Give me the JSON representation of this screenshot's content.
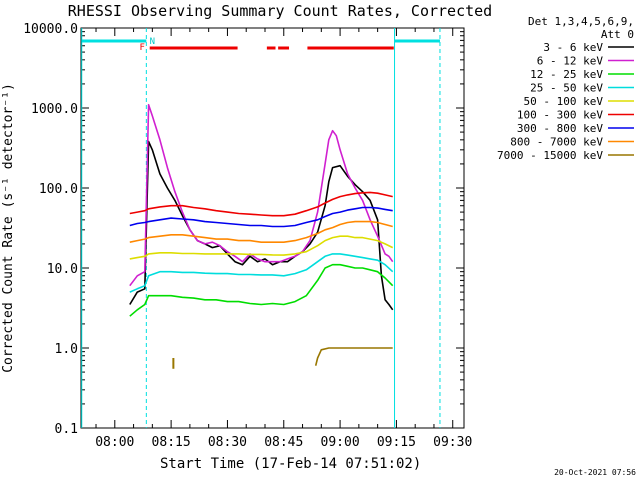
{
  "chart_data": {
    "type": "line",
    "title": "RHESSI Observing Summary Count Rates, Corrected",
    "xlabel": "Start Time (17-Feb-14 07:51:02)",
    "ylabel": "Corrected Count Rate (s⁻¹ detector⁻¹)",
    "yscale": "log",
    "ylim": [
      0.1,
      10000.0
    ],
    "xlim_minutes": [
      471,
      573
    ],
    "x_ticks": [
      {
        "label": "08:00",
        "min": 480
      },
      {
        "label": "08:15",
        "min": 495
      },
      {
        "label": "08:30",
        "min": 510
      },
      {
        "label": "08:45",
        "min": 525
      },
      {
        "label": "09:00",
        "min": 540
      },
      {
        "label": "09:15",
        "min": 555
      },
      {
        "label": "09:30",
        "min": 570
      }
    ],
    "y_ticks": [
      "0.1",
      "1.0",
      "10.0",
      "100.0",
      "1000.0",
      "10000.0"
    ],
    "legend_header": [
      "Det 1,3,4,5,6,9,",
      "Att 0"
    ],
    "legend_position": "right",
    "flags": {
      "f_label": "F",
      "n_label": "N"
    },
    "series": [
      {
        "name": "3 - 6 keV",
        "color": "#000000",
        "points": [
          [
            484,
            3.5
          ],
          [
            486,
            5
          ],
          [
            488,
            5.5
          ],
          [
            489,
            380
          ],
          [
            490,
            300
          ],
          [
            492,
            150
          ],
          [
            494,
            100
          ],
          [
            496,
            70
          ],
          [
            498,
            45
          ],
          [
            500,
            30
          ],
          [
            502,
            22
          ],
          [
            504,
            20
          ],
          [
            506,
            18
          ],
          [
            508,
            19
          ],
          [
            510,
            15
          ],
          [
            512,
            12
          ],
          [
            514,
            11
          ],
          [
            516,
            14
          ],
          [
            518,
            12
          ],
          [
            520,
            13
          ],
          [
            522,
            11
          ],
          [
            524,
            12
          ],
          [
            526,
            12
          ],
          [
            528,
            14
          ],
          [
            530,
            16
          ],
          [
            532,
            20
          ],
          [
            534,
            28
          ],
          [
            536,
            60
          ],
          [
            537,
            120
          ],
          [
            538,
            180
          ],
          [
            540,
            190
          ],
          [
            542,
            140
          ],
          [
            544,
            110
          ],
          [
            546,
            90
          ],
          [
            548,
            70
          ],
          [
            550,
            40
          ],
          [
            551,
            8
          ],
          [
            552,
            4
          ],
          [
            553,
            3.5
          ],
          [
            554,
            3
          ]
        ]
      },
      {
        "name": "6 - 12 keV",
        "color": "#d020d0",
        "points": [
          [
            484,
            6
          ],
          [
            486,
            8
          ],
          [
            488,
            9
          ],
          [
            489,
            1100
          ],
          [
            490,
            800
          ],
          [
            492,
            400
          ],
          [
            494,
            180
          ],
          [
            496,
            90
          ],
          [
            498,
            50
          ],
          [
            500,
            30
          ],
          [
            502,
            22
          ],
          [
            504,
            20
          ],
          [
            506,
            21
          ],
          [
            508,
            19
          ],
          [
            510,
            16
          ],
          [
            512,
            14
          ],
          [
            514,
            12
          ],
          [
            516,
            15
          ],
          [
            518,
            13
          ],
          [
            520,
            12
          ],
          [
            522,
            12
          ],
          [
            524,
            12
          ],
          [
            526,
            13
          ],
          [
            528,
            14
          ],
          [
            530,
            16
          ],
          [
            532,
            22
          ],
          [
            534,
            50
          ],
          [
            536,
            200
          ],
          [
            537,
            400
          ],
          [
            538,
            520
          ],
          [
            539,
            450
          ],
          [
            540,
            300
          ],
          [
            542,
            150
          ],
          [
            544,
            100
          ],
          [
            546,
            70
          ],
          [
            548,
            40
          ],
          [
            550,
            25
          ],
          [
            552,
            15
          ],
          [
            553,
            14
          ],
          [
            554,
            12
          ]
        ]
      },
      {
        "name": "12 - 25 keV",
        "color": "#00dd00",
        "points": [
          [
            484,
            2.5
          ],
          [
            486,
            3
          ],
          [
            488,
            3.5
          ],
          [
            489,
            4.5
          ],
          [
            492,
            4.5
          ],
          [
            495,
            4.5
          ],
          [
            498,
            4.3
          ],
          [
            501,
            4.2
          ],
          [
            504,
            4.0
          ],
          [
            507,
            4.0
          ],
          [
            510,
            3.8
          ],
          [
            513,
            3.8
          ],
          [
            516,
            3.6
          ],
          [
            519,
            3.5
          ],
          [
            522,
            3.6
          ],
          [
            525,
            3.5
          ],
          [
            528,
            3.8
          ],
          [
            531,
            4.5
          ],
          [
            534,
            7
          ],
          [
            536,
            10
          ],
          [
            538,
            11
          ],
          [
            540,
            11
          ],
          [
            542,
            10.5
          ],
          [
            544,
            10
          ],
          [
            546,
            10
          ],
          [
            548,
            9.5
          ],
          [
            550,
            9
          ],
          [
            552,
            7.5
          ],
          [
            554,
            6
          ]
        ]
      },
      {
        "name": "25 - 50 keV",
        "color": "#00dddd",
        "points": [
          [
            484,
            5
          ],
          [
            486,
            5.5
          ],
          [
            488,
            6
          ],
          [
            489,
            8
          ],
          [
            492,
            9
          ],
          [
            495,
            9
          ],
          [
            498,
            8.8
          ],
          [
            501,
            8.8
          ],
          [
            504,
            8.6
          ],
          [
            507,
            8.5
          ],
          [
            510,
            8.5
          ],
          [
            513,
            8.3
          ],
          [
            516,
            8.3
          ],
          [
            519,
            8.2
          ],
          [
            522,
            8.2
          ],
          [
            525,
            8.0
          ],
          [
            528,
            8.5
          ],
          [
            531,
            9.5
          ],
          [
            534,
            12
          ],
          [
            536,
            14
          ],
          [
            538,
            15
          ],
          [
            540,
            15
          ],
          [
            542,
            14.5
          ],
          [
            544,
            14
          ],
          [
            546,
            13.5
          ],
          [
            548,
            13
          ],
          [
            550,
            12.5
          ],
          [
            552,
            11
          ],
          [
            554,
            9
          ]
        ]
      },
      {
        "name": "50 - 100 keV",
        "color": "#dddd00",
        "points": [
          [
            484,
            13
          ],
          [
            486,
            13.5
          ],
          [
            488,
            14
          ],
          [
            489,
            15
          ],
          [
            492,
            15.5
          ],
          [
            495,
            15.5
          ],
          [
            498,
            15.2
          ],
          [
            501,
            15.2
          ],
          [
            504,
            15
          ],
          [
            507,
            15
          ],
          [
            510,
            15
          ],
          [
            513,
            15
          ],
          [
            516,
            14.8
          ],
          [
            519,
            14.8
          ],
          [
            522,
            14.6
          ],
          [
            525,
            14.5
          ],
          [
            528,
            15
          ],
          [
            531,
            16
          ],
          [
            534,
            19
          ],
          [
            536,
            22
          ],
          [
            538,
            24
          ],
          [
            540,
            25
          ],
          [
            542,
            25
          ],
          [
            544,
            24
          ],
          [
            546,
            24
          ],
          [
            548,
            23
          ],
          [
            550,
            22
          ],
          [
            552,
            20
          ],
          [
            554,
            18
          ]
        ]
      },
      {
        "name": "100 - 300 keV",
        "color": "#ee0000",
        "points": [
          [
            484,
            48
          ],
          [
            486,
            50
          ],
          [
            488,
            52
          ],
          [
            489,
            55
          ],
          [
            492,
            58
          ],
          [
            495,
            60
          ],
          [
            498,
            60
          ],
          [
            501,
            57
          ],
          [
            504,
            55
          ],
          [
            507,
            52
          ],
          [
            510,
            50
          ],
          [
            513,
            48
          ],
          [
            516,
            47
          ],
          [
            519,
            46
          ],
          [
            522,
            45
          ],
          [
            525,
            45
          ],
          [
            528,
            47
          ],
          [
            531,
            52
          ],
          [
            534,
            58
          ],
          [
            536,
            65
          ],
          [
            538,
            72
          ],
          [
            540,
            78
          ],
          [
            542,
            82
          ],
          [
            544,
            85
          ],
          [
            546,
            87
          ],
          [
            548,
            88
          ],
          [
            550,
            86
          ],
          [
            552,
            82
          ],
          [
            554,
            78
          ]
        ]
      },
      {
        "name": "300 - 800 keV",
        "color": "#0000ee",
        "points": [
          [
            484,
            34
          ],
          [
            486,
            36
          ],
          [
            488,
            37
          ],
          [
            489,
            38
          ],
          [
            492,
            40
          ],
          [
            495,
            42
          ],
          [
            498,
            41
          ],
          [
            501,
            40
          ],
          [
            504,
            38
          ],
          [
            507,
            37
          ],
          [
            510,
            36
          ],
          [
            513,
            35
          ],
          [
            516,
            34
          ],
          [
            519,
            34
          ],
          [
            522,
            33
          ],
          [
            525,
            33
          ],
          [
            528,
            34
          ],
          [
            531,
            37
          ],
          [
            534,
            40
          ],
          [
            536,
            44
          ],
          [
            538,
            48
          ],
          [
            540,
            50
          ],
          [
            542,
            53
          ],
          [
            544,
            55
          ],
          [
            546,
            57
          ],
          [
            548,
            57
          ],
          [
            550,
            56
          ],
          [
            552,
            54
          ],
          [
            554,
            52
          ]
        ]
      },
      {
        "name": "800 - 7000 keV",
        "color": "#ff8800",
        "points": [
          [
            484,
            21
          ],
          [
            486,
            22
          ],
          [
            488,
            23
          ],
          [
            489,
            24
          ],
          [
            492,
            25
          ],
          [
            495,
            26
          ],
          [
            498,
            26
          ],
          [
            501,
            25
          ],
          [
            504,
            24
          ],
          [
            507,
            23
          ],
          [
            510,
            23
          ],
          [
            513,
            22
          ],
          [
            516,
            22
          ],
          [
            519,
            21
          ],
          [
            522,
            21
          ],
          [
            525,
            21
          ],
          [
            528,
            22
          ],
          [
            531,
            24
          ],
          [
            534,
            27
          ],
          [
            536,
            30
          ],
          [
            538,
            32
          ],
          [
            540,
            35
          ],
          [
            542,
            37
          ],
          [
            544,
            38
          ],
          [
            546,
            38
          ],
          [
            548,
            38
          ],
          [
            550,
            37
          ],
          [
            552,
            35
          ],
          [
            554,
            33
          ]
        ]
      },
      {
        "name": "7000 - 15000 keV",
        "color": "#997700",
        "points": [
          [
            533.5,
            0.6
          ],
          [
            534,
            0.75
          ],
          [
            535,
            0.95
          ],
          [
            537,
            1.0
          ],
          [
            540,
            1.0
          ],
          [
            543,
            1.0
          ],
          [
            546,
            1.0
          ],
          [
            549,
            1.0
          ],
          [
            552,
            1.0
          ],
          [
            554,
            1.0
          ]
        ]
      }
    ]
  },
  "footer_date": "20-Oct-2021 07:56"
}
